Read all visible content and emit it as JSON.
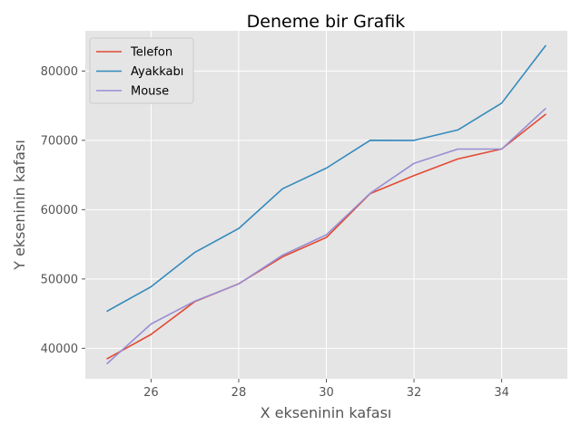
{
  "chart_data": {
    "type": "line",
    "title": "Deneme bir Grafik",
    "xlabel": "X ekseninin kafası",
    "ylabel": "Y ekseninin kafası",
    "x": [
      25,
      26,
      27,
      28,
      29,
      30,
      31,
      32,
      33,
      34,
      35
    ],
    "xlim": [
      24.5,
      35.5
    ],
    "ylim": [
      35600,
      85800
    ],
    "xticks": [
      26,
      28,
      30,
      32,
      34
    ],
    "yticks": [
      40000,
      50000,
      60000,
      70000,
      80000
    ],
    "grid": true,
    "legend_position": "upper-left",
    "series": [
      {
        "name": "Telefon",
        "color": "#E24A33",
        "values": [
          38496,
          42000,
          46752,
          49320,
          53200,
          56000,
          62316,
          64928,
          67317,
          68748,
          73752
        ]
      },
      {
        "name": "Ayakkabı",
        "color": "#348ABD",
        "values": [
          45372,
          48876,
          53850,
          57287,
          63016,
          65998,
          70003,
          70000,
          71496,
          75370,
          83640
        ]
      },
      {
        "name": "Mouse",
        "color": "#988ED5",
        "values": [
          37810,
          43515,
          46823,
          49293,
          53437,
          56373,
          62375,
          66674,
          68745,
          68746,
          74583
        ]
      }
    ]
  }
}
